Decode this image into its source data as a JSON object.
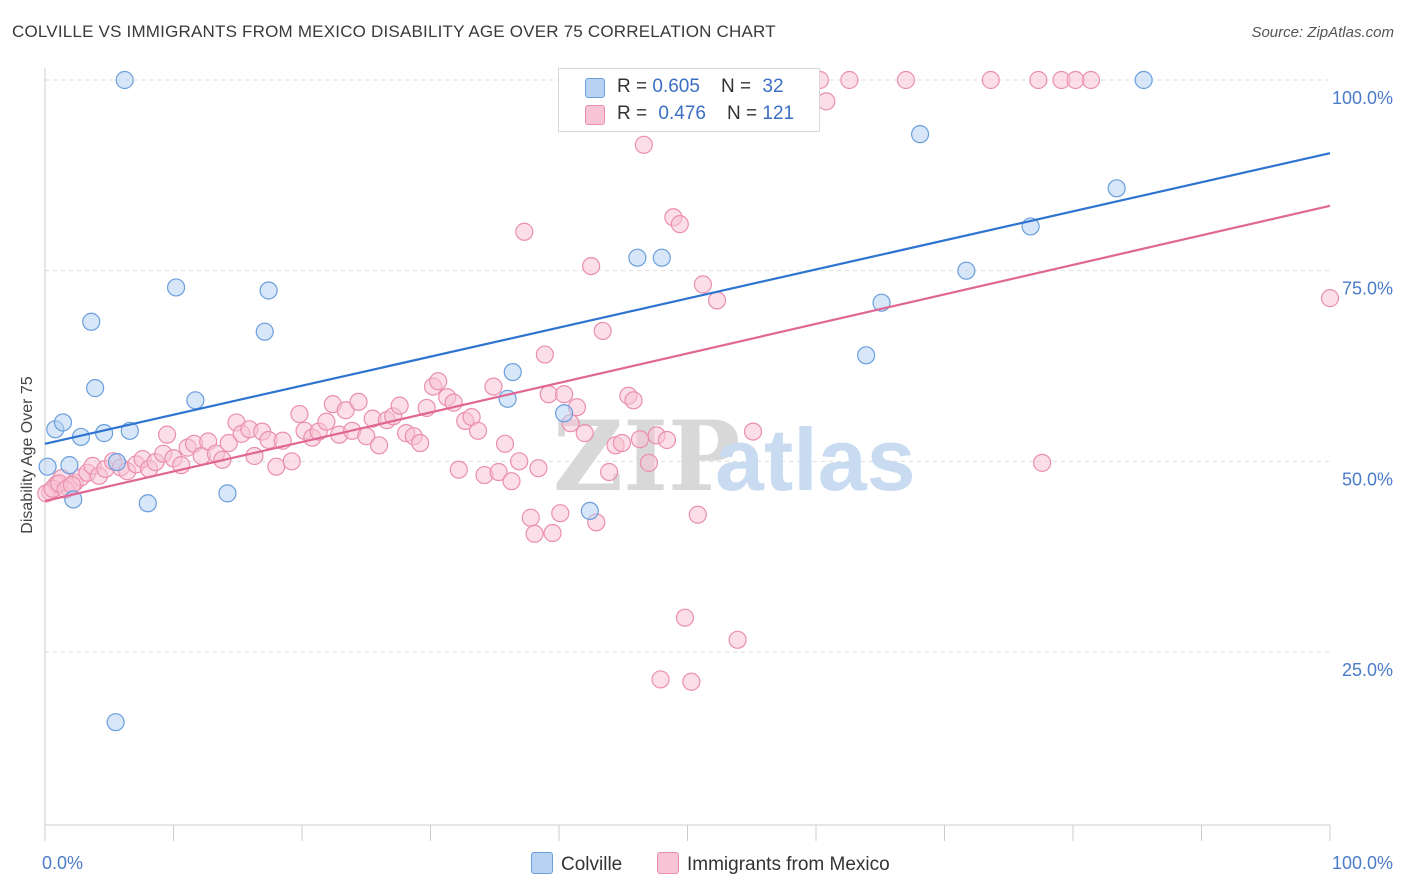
{
  "header": {
    "title": "COLVILLE VS IMMIGRANTS FROM MEXICO DISABILITY AGE OVER 75 CORRELATION CHART",
    "source": "Source: ZipAtlas.com"
  },
  "watermark": {
    "zip": "ZIP",
    "atlas": "atlas"
  },
  "legend": {
    "rows": [
      {
        "r_label": "R = ",
        "r_value": "0.605",
        "n_label": "N = ",
        "n_value": "32",
        "color": "#a9c8f0"
      },
      {
        "r_label": "R = ",
        "r_value": "0.476",
        "n_label": "N = ",
        "n_value": "121",
        "color": "#f6b6cb"
      }
    ]
  },
  "colors": {
    "blue_fill": "#b7d2f3",
    "blue_stroke": "#6a9fdc",
    "blue_line": "#2f74d0",
    "pink_fill": "#f8c3d4",
    "pink_stroke": "#ea8fae",
    "pink_line": "#e06794",
    "axis_label": "#4a7cc9",
    "grid": "#dddddd"
  },
  "chart_data": {
    "type": "scatter",
    "title": "COLVILLE VS IMMIGRANTS FROM MEXICO DISABILITY AGE OVER 75 CORRELATION CHART",
    "xlabel": "",
    "ylabel": "Disability Age Over 75",
    "xlim": [
      0,
      100
    ],
    "ylim": [
      0,
      105
    ],
    "x_tick_labels": [
      "0.0%",
      "100.0%"
    ],
    "y_ticks": [
      {
        "value": 25,
        "label": "25.0%"
      },
      {
        "value": 50,
        "label": "50.0%"
      },
      {
        "value": 75,
        "label": "75.0%"
      },
      {
        "value": 100,
        "label": "100.0%"
      }
    ],
    "grid": "horizontal dashed",
    "legend_position": "bottom",
    "series": [
      {
        "name": "Colville",
        "r": 0.605,
        "n": 32,
        "trend": {
          "x": [
            0,
            100
          ],
          "y": [
            52.3,
            90.4
          ]
        },
        "points": [
          [
            0.2,
            49.3
          ],
          [
            0.8,
            54.2
          ],
          [
            1.4,
            55.1
          ],
          [
            1.9,
            49.5
          ],
          [
            2.2,
            45.0
          ],
          [
            2.8,
            53.2
          ],
          [
            3.6,
            68.3
          ],
          [
            3.9,
            59.6
          ],
          [
            4.6,
            53.7
          ],
          [
            5.5,
            15.8
          ],
          [
            5.6,
            49.9
          ],
          [
            6.2,
            100.0
          ],
          [
            6.6,
            54.0
          ],
          [
            8.0,
            44.5
          ],
          [
            10.2,
            72.8
          ],
          [
            11.7,
            58.0
          ],
          [
            14.2,
            45.8
          ],
          [
            17.1,
            67.0
          ],
          [
            17.4,
            72.4
          ],
          [
            36.0,
            58.2
          ],
          [
            36.4,
            61.7
          ],
          [
            40.4,
            56.3
          ],
          [
            42.4,
            43.5
          ],
          [
            46.1,
            76.7
          ],
          [
            48.0,
            76.7
          ],
          [
            63.9,
            63.9
          ],
          [
            65.1,
            70.8
          ],
          [
            68.1,
            92.9
          ],
          [
            71.7,
            75.0
          ],
          [
            76.7,
            80.8
          ],
          [
            83.4,
            85.8
          ],
          [
            85.5,
            100.0
          ]
        ]
      },
      {
        "name": "Immigrants from Mexico",
        "r": 0.476,
        "n": 121,
        "trend": {
          "x": [
            0,
            100
          ],
          "y": [
            44.8,
            83.5
          ]
        },
        "points": [
          [
            0.4,
            46.0
          ],
          [
            0.9,
            47.0
          ],
          [
            1.3,
            47.8
          ],
          [
            1.8,
            46.6
          ],
          [
            2.3,
            47.2
          ],
          [
            2.8,
            47.9
          ],
          [
            3.3,
            48.5
          ],
          [
            3.7,
            49.4
          ],
          [
            4.2,
            48.1
          ],
          [
            4.7,
            49.0
          ],
          [
            5.3,
            50.0
          ],
          [
            5.9,
            49.2
          ],
          [
            6.4,
            48.7
          ],
          [
            7.1,
            49.6
          ],
          [
            7.6,
            50.3
          ],
          [
            8.1,
            49.0
          ],
          [
            8.6,
            49.9
          ],
          [
            9.2,
            51.0
          ],
          [
            9.5,
            53.5
          ],
          [
            10.0,
            50.4
          ],
          [
            10.6,
            49.5
          ],
          [
            11.1,
            51.8
          ],
          [
            11.6,
            52.3
          ],
          [
            12.2,
            50.7
          ],
          [
            12.7,
            52.6
          ],
          [
            13.3,
            51.0
          ],
          [
            13.8,
            50.2
          ],
          [
            14.3,
            52.4
          ],
          [
            14.9,
            55.1
          ],
          [
            15.3,
            53.6
          ],
          [
            15.9,
            54.2
          ],
          [
            16.3,
            50.7
          ],
          [
            16.9,
            53.9
          ],
          [
            17.4,
            52.8
          ],
          [
            18.0,
            49.3
          ],
          [
            18.5,
            52.7
          ],
          [
            19.2,
            50.0
          ],
          [
            19.8,
            56.2
          ],
          [
            20.2,
            54.0
          ],
          [
            20.8,
            53.1
          ],
          [
            21.3,
            53.9
          ],
          [
            21.9,
            55.2
          ],
          [
            22.4,
            57.5
          ],
          [
            22.9,
            53.5
          ],
          [
            23.4,
            56.7
          ],
          [
            23.9,
            54.0
          ],
          [
            24.4,
            57.8
          ],
          [
            25.0,
            53.3
          ],
          [
            25.5,
            55.6
          ],
          [
            26.0,
            52.1
          ],
          [
            26.6,
            55.4
          ],
          [
            27.1,
            55.9
          ],
          [
            27.6,
            57.3
          ],
          [
            28.1,
            53.7
          ],
          [
            28.7,
            53.3
          ],
          [
            29.2,
            52.4
          ],
          [
            29.7,
            57.0
          ],
          [
            30.2,
            59.8
          ],
          [
            30.6,
            60.5
          ],
          [
            31.3,
            58.4
          ],
          [
            31.8,
            57.7
          ],
          [
            32.2,
            48.9
          ],
          [
            32.7,
            55.3
          ],
          [
            33.2,
            55.8
          ],
          [
            33.7,
            54.0
          ],
          [
            34.2,
            48.2
          ],
          [
            34.9,
            59.8
          ],
          [
            35.3,
            48.6
          ],
          [
            35.8,
            52.3
          ],
          [
            36.3,
            47.4
          ],
          [
            36.9,
            50.0
          ],
          [
            37.3,
            80.1
          ],
          [
            37.8,
            42.6
          ],
          [
            38.1,
            40.5
          ],
          [
            38.4,
            49.1
          ],
          [
            38.9,
            64.0
          ],
          [
            39.2,
            58.8
          ],
          [
            39.5,
            40.6
          ],
          [
            40.1,
            43.2
          ],
          [
            40.4,
            58.8
          ],
          [
            40.9,
            55.0
          ],
          [
            41.4,
            57.1
          ],
          [
            42.0,
            53.7
          ],
          [
            42.5,
            75.6
          ],
          [
            42.9,
            42.0
          ],
          [
            43.4,
            67.1
          ],
          [
            43.9,
            48.6
          ],
          [
            44.4,
            52.1
          ],
          [
            44.9,
            52.4
          ],
          [
            45.4,
            58.6
          ],
          [
            45.8,
            58.0
          ],
          [
            46.3,
            52.9
          ],
          [
            46.6,
            91.5
          ],
          [
            47.0,
            49.8
          ],
          [
            47.6,
            53.4
          ],
          [
            47.9,
            21.4
          ],
          [
            48.4,
            52.8
          ],
          [
            48.9,
            82.0
          ],
          [
            49.4,
            81.1
          ],
          [
            49.8,
            29.5
          ],
          [
            50.3,
            21.1
          ],
          [
            50.8,
            43.0
          ],
          [
            51.2,
            73.2
          ],
          [
            52.3,
            71.1
          ],
          [
            53.9,
            26.6
          ],
          [
            55.1,
            53.9
          ],
          [
            56.6,
            100.0
          ],
          [
            57.1,
            100.0
          ],
          [
            60.3,
            100.0
          ],
          [
            60.8,
            97.2
          ],
          [
            62.6,
            100.0
          ],
          [
            67.0,
            100.0
          ],
          [
            73.6,
            100.0
          ],
          [
            77.3,
            100.0
          ],
          [
            77.6,
            49.8
          ],
          [
            79.1,
            100.0
          ],
          [
            80.2,
            100.0
          ],
          [
            81.4,
            100.0
          ],
          [
            100.0,
            71.4
          ],
          [
            0.1,
            45.8
          ],
          [
            0.6,
            46.4
          ],
          [
            1.1,
            47.1
          ],
          [
            1.6,
            46.3
          ],
          [
            2.1,
            46.9
          ]
        ]
      }
    ]
  }
}
